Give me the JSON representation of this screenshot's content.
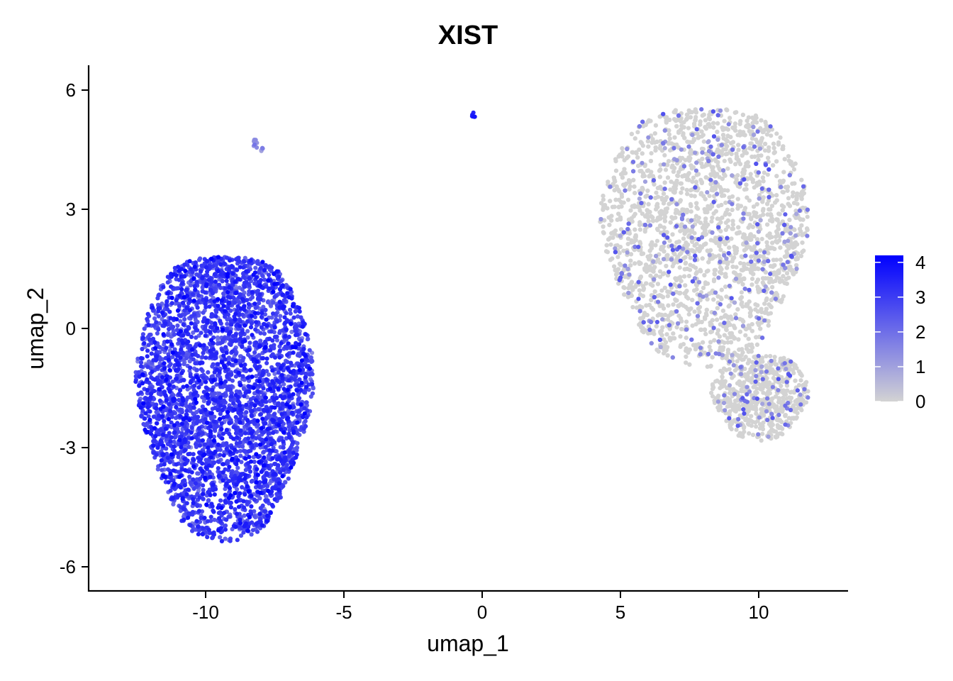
{
  "chart_data": {
    "type": "scatter",
    "title": "XIST",
    "xlabel": "umap_1",
    "ylabel": "umap_2",
    "xlim": [
      -14.2,
      13.2
    ],
    "ylim": [
      -6.6,
      6.6
    ],
    "x_ticks": [
      -10,
      -5,
      0,
      5,
      10
    ],
    "x_tick_labels": [
      "-10",
      "-5",
      "0",
      "5",
      "10"
    ],
    "y_ticks": [
      6,
      3,
      0,
      -3,
      -6
    ],
    "y_tick_labels": [
      "6",
      "3",
      "0",
      "-3",
      "-6"
    ],
    "grid": false,
    "colors": {
      "low": "#d3d3d3",
      "high": "#0000ff",
      "axis": "#000000"
    },
    "color_scale": {
      "min": 0,
      "max": 4.2,
      "ticks": [
        4,
        3,
        2,
        1,
        0
      ],
      "tick_labels": [
        "4",
        "3",
        "2",
        "1",
        "0"
      ],
      "placement": "right"
    },
    "clusters": [
      {
        "label": "left large cluster",
        "x_range": [
          -12.5,
          -6.1
        ],
        "y_range": [
          -5.3,
          2.1
        ],
        "mean_expression": 2.9,
        "expression_sd": 0.55,
        "approx_cells": 3800
      },
      {
        "label": "small top-left cluster",
        "x_range": [
          -8.3,
          -7.9
        ],
        "y_range": [
          4.4,
          4.8
        ],
        "mean_expression": 1.3,
        "expression_sd": 0.3,
        "approx_cells": 12
      },
      {
        "label": "tiny top-center cluster",
        "x_range": [
          -0.4,
          -0.2
        ],
        "y_range": [
          5.3,
          5.5
        ],
        "mean_expression": 3.8,
        "expression_sd": 0.3,
        "approx_cells": 6
      },
      {
        "label": "right large cluster",
        "x_range": [
          4.3,
          11.8
        ],
        "y_range": [
          -0.9,
          5.8
        ],
        "mean_expression": 0.15,
        "expression_sd": 0.4,
        "approx_cells": 3600
      },
      {
        "label": "right small cluster",
        "x_range": [
          8.3,
          11.8
        ],
        "y_range": [
          -2.8,
          -0.6
        ],
        "mean_expression": 0.25,
        "expression_sd": 0.5,
        "approx_cells": 650
      }
    ]
  }
}
